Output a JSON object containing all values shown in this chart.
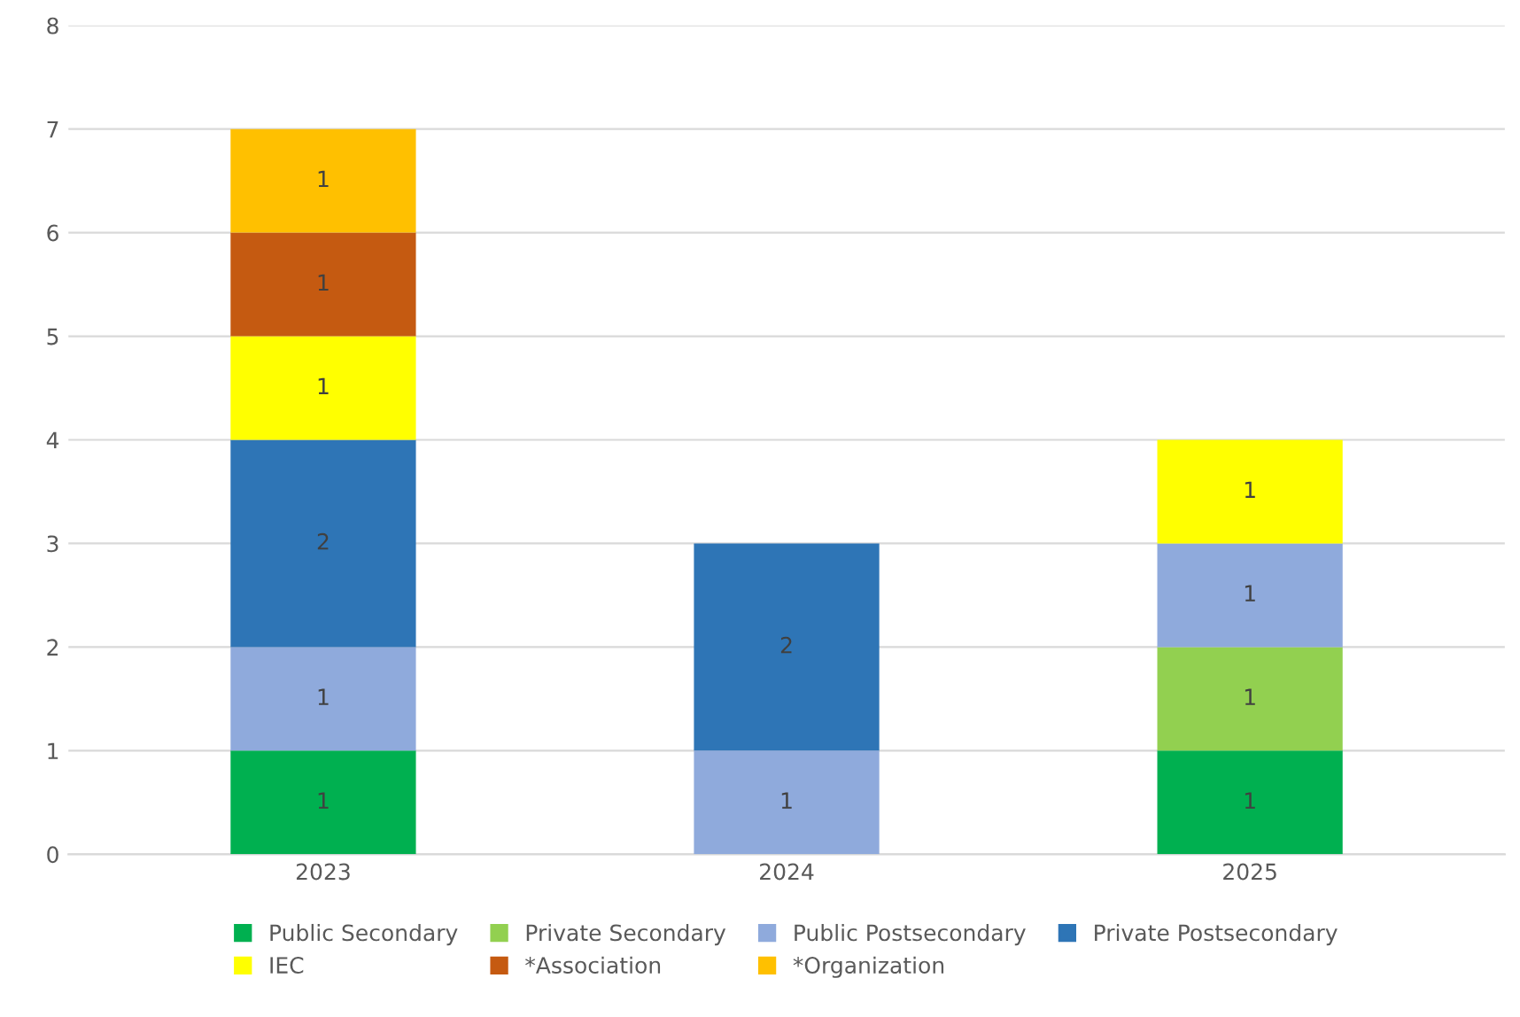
{
  "chart_data": {
    "type": "bar",
    "stacked": true,
    "categories": [
      "2023",
      "2024",
      "2025"
    ],
    "series": [
      {
        "name": "Public Secondary",
        "color": "#00b050",
        "values": [
          1,
          null,
          1
        ]
      },
      {
        "name": "Private Secondary",
        "color": "#92d050",
        "values": [
          null,
          null,
          1
        ]
      },
      {
        "name": "Public Postsecondary",
        "color": "#8faadc",
        "values": [
          1,
          1,
          1
        ]
      },
      {
        "name": "Private Postsecondary",
        "color": "#2e75b6",
        "values": [
          2,
          2,
          null
        ]
      },
      {
        "name": "IEC",
        "color": "#ffff00",
        "values": [
          1,
          null,
          1
        ]
      },
      {
        "name": "*Association",
        "color": "#c55a11",
        "values": [
          1,
          null,
          null
        ]
      },
      {
        "name": "*Organization",
        "color": "#ffc000",
        "values": [
          1,
          null,
          null
        ]
      }
    ],
    "ylim": [
      0,
      8
    ],
    "yticks": [
      0,
      1,
      2,
      3,
      4,
      5,
      6,
      7,
      8
    ],
    "grid": "y",
    "data_labels": true,
    "legend": "bottom"
  }
}
